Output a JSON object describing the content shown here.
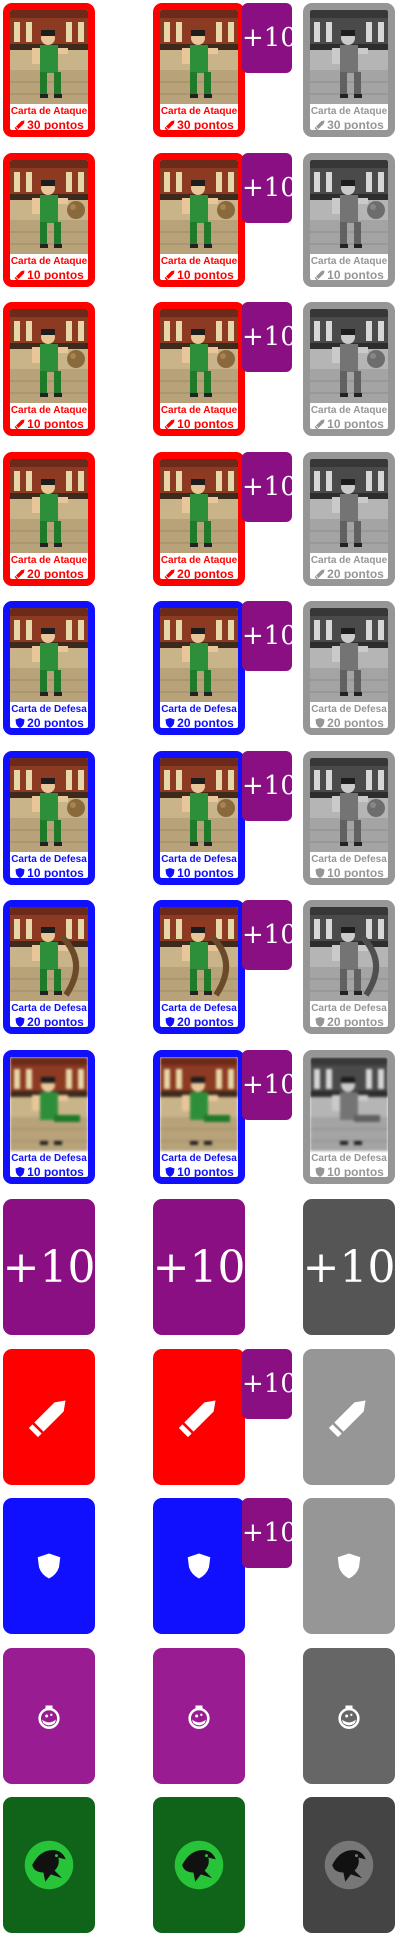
{
  "colors": {
    "attack": "#ff0000",
    "defense": "#1010ff",
    "gray_card": "#969696",
    "bonus": "#8a0f82",
    "bonus_gray": "#555555",
    "potion": "#9a1c92",
    "potion_gray": "#666666",
    "emblem": "#0f6419",
    "emblem_gray": "#444444"
  },
  "rows": [
    {
      "kind": "attack",
      "title": "Carta de Ataque",
      "points": "30 pontos",
      "icon": "sword-icon"
    },
    {
      "kind": "attack",
      "title": "Carta de Ataque",
      "points": "10 pontos",
      "icon": "sword-icon"
    },
    {
      "kind": "attack",
      "title": "Carta de Ataque",
      "points": "10 pontos",
      "icon": "sword-icon"
    },
    {
      "kind": "attack",
      "title": "Carta de Ataque",
      "points": "20 pontos",
      "icon": "sword-icon"
    },
    {
      "kind": "defense",
      "title": "Carta de Defesa",
      "points": "20 pontos",
      "icon": "shield-icon"
    },
    {
      "kind": "defense",
      "title": "Carta de Defesa",
      "points": "10 pontos",
      "icon": "shield-icon"
    },
    {
      "kind": "defense",
      "title": "Carta de Defesa",
      "points": "20 pontos",
      "icon": "shield-icon"
    },
    {
      "kind": "defense",
      "title": "Carta de Defesa",
      "points": "10 pontos",
      "icon": "shield-icon",
      "blur": true
    }
  ],
  "bonus_label": "+10",
  "backs": [
    {
      "kind": "bonus",
      "label": "+10",
      "icon": "plus-ten-label"
    },
    {
      "kind": "attack",
      "icon": "sword-icon"
    },
    {
      "kind": "defense",
      "icon": "shield-icon"
    },
    {
      "kind": "potion",
      "icon": "potion-icon"
    },
    {
      "kind": "emblem",
      "icon": "dragon-emblem-icon"
    }
  ]
}
